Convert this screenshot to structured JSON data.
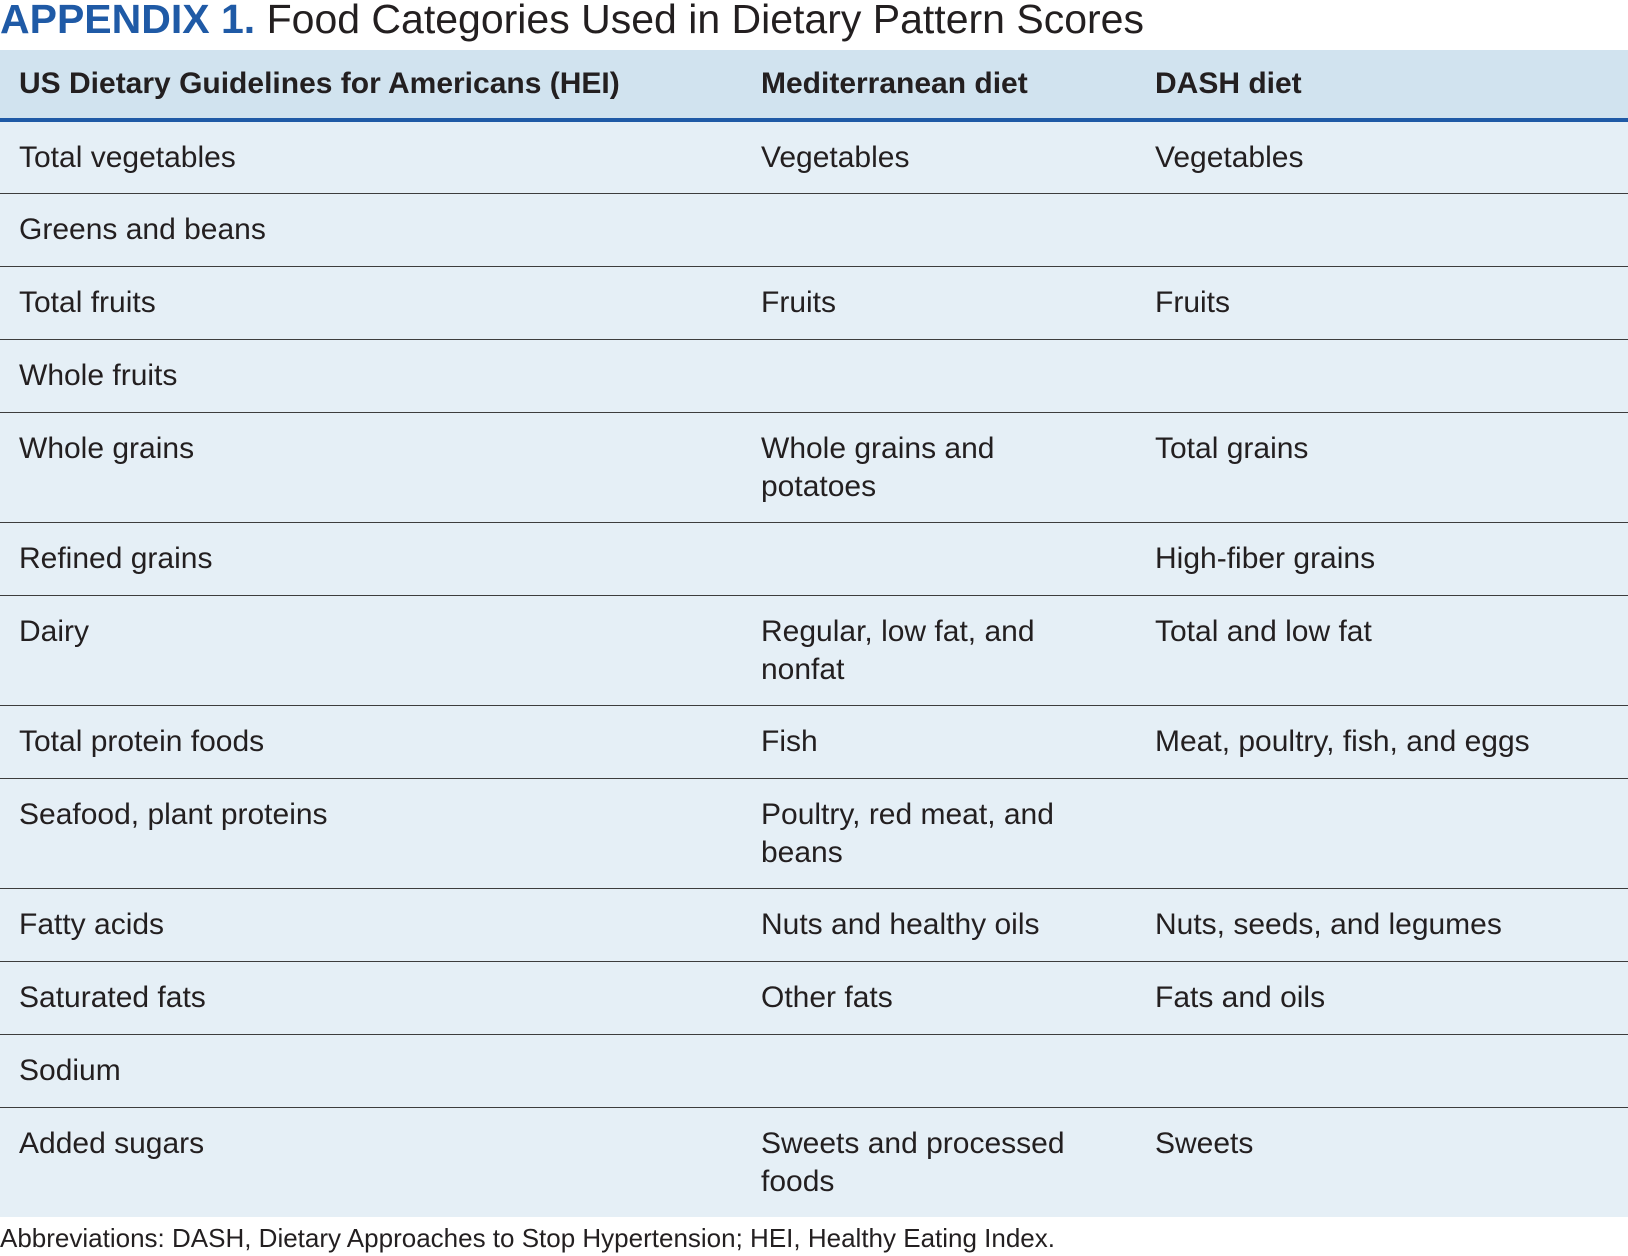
{
  "title": {
    "label": "APPENDIX 1.",
    "text": " Food Categories Used in Dietary Pattern Scores"
  },
  "table": {
    "headers": [
      "US Dietary Guidelines for Americans (HEI)",
      "Mediterranean diet",
      "DASH diet"
    ],
    "rows": [
      [
        "Total vegetables",
        "Vegetables",
        "Vegetables"
      ],
      [
        "Greens and beans",
        "",
        ""
      ],
      [
        "Total fruits",
        "Fruits",
        "Fruits"
      ],
      [
        "Whole fruits",
        "",
        ""
      ],
      [
        "Whole grains",
        "Whole grains and potatoes",
        "Total grains"
      ],
      [
        "Refined grains",
        "",
        "High-fiber grains"
      ],
      [
        "Dairy",
        "Regular, low fat, and nonfat",
        "Total and low fat"
      ],
      [
        "Total protein foods",
        "Fish",
        "Meat, poultry, fish, and eggs"
      ],
      [
        "Seafood, plant proteins",
        "Poultry, red meat, and beans",
        ""
      ],
      [
        "Fatty acids",
        "Nuts and healthy oils",
        "Nuts, seeds, and legumes"
      ],
      [
        "Saturated fats",
        "Other fats",
        "Fats and oils"
      ],
      [
        "Sodium",
        "",
        ""
      ],
      [
        "Added sugars",
        "Sweets and processed foods",
        "Sweets"
      ]
    ]
  },
  "footnote": "Abbreviations: DASH, Dietary Approaches to Stop Hypertension; HEI, Healthy Eating Index.",
  "colors": {
    "accent": "#1f5aa6",
    "header_bg": "#d1e3ef",
    "body_bg": "#e5eff6"
  }
}
